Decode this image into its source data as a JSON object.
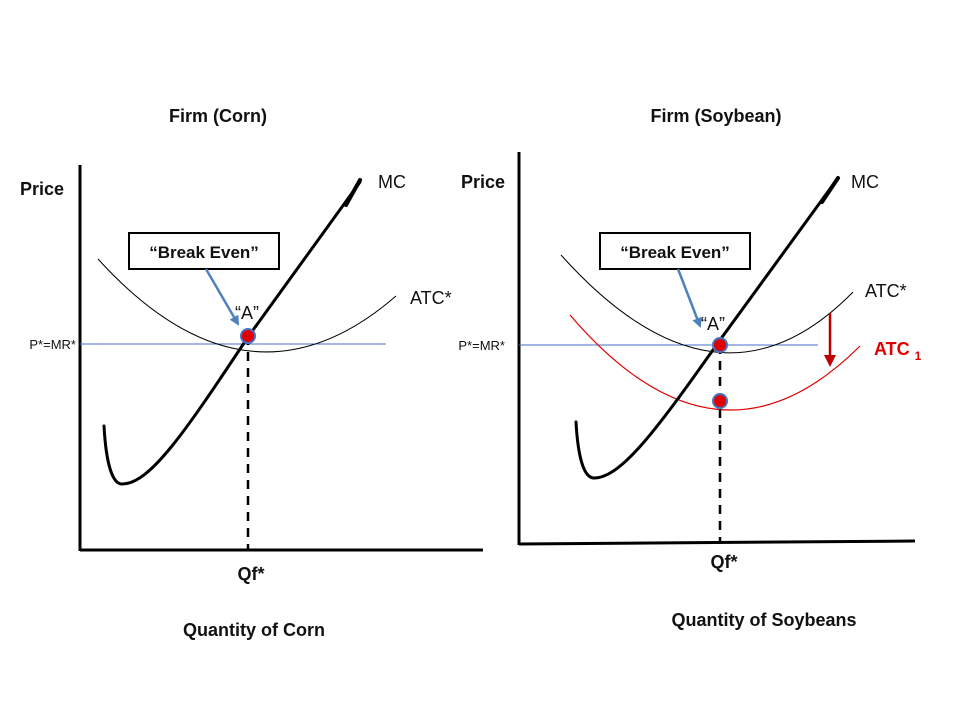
{
  "left_panel": {
    "title": "Firm (Corn)",
    "y_axis_label": "Price",
    "x_axis_label": "Quantity of Corn",
    "mc_label": "MC",
    "atc_label": "ATC*",
    "price_line_label": "P*=MR*",
    "quantity_label": "Qf*",
    "callout_text": "“Break Even”",
    "point_label": "“A”"
  },
  "right_panel": {
    "title": "Firm (Soybean)",
    "y_axis_label": "Price",
    "x_axis_label": "Quantity of Soybeans",
    "mc_label": "MC",
    "atc_label": "ATC*",
    "atc1_label": "ATC",
    "atc1_subscript": "1",
    "price_line_label": "P*=MR*",
    "quantity_label": "Qf*",
    "callout_text": "“Break Even”",
    "point_label": "“A”"
  },
  "colors": {
    "price_line": "#4472c4",
    "callout_arrow": "#4f81bd",
    "marker_fill": "#e00000",
    "marker_stroke": "#4472c4",
    "atc1_curve": "#e00000",
    "shift_arrow": "#c00000"
  }
}
